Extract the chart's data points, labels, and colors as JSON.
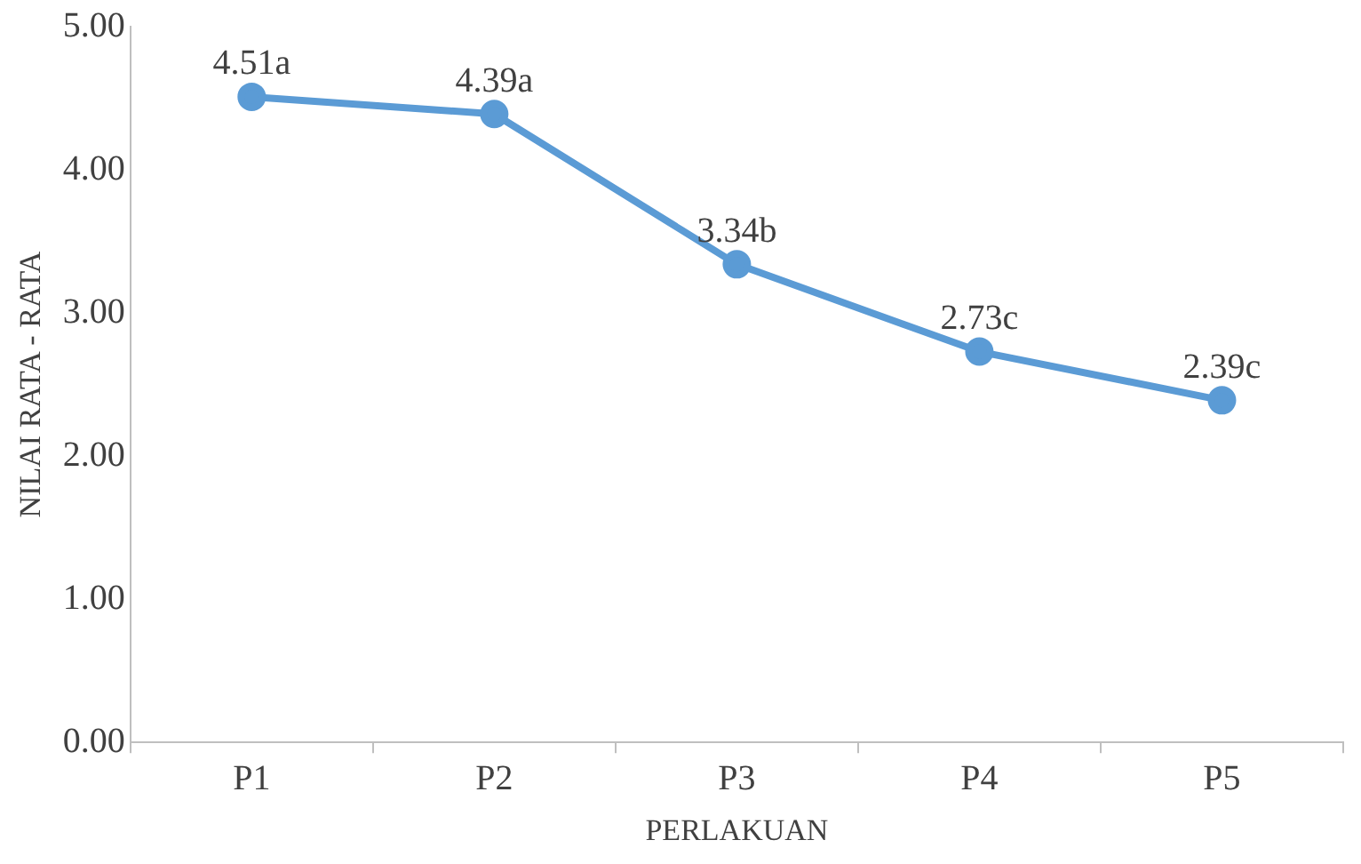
{
  "chart_data": {
    "type": "line",
    "xlabel": "PERLAKUAN",
    "ylabel": "NILAI RATA - RATA",
    "categories": [
      "P1",
      "P2",
      "P3",
      "P4",
      "P5"
    ],
    "series": [
      {
        "color": "#5b9bd5",
        "values": [
          4.51,
          4.39,
          3.34,
          2.73,
          2.39
        ],
        "value_labels": [
          "4.51a",
          "4.39a",
          "3.34b",
          "2.73c",
          "2.39c"
        ]
      }
    ],
    "ylim": [
      0,
      5
    ],
    "yticks": [
      {
        "value": 0,
        "label": "0.00"
      },
      {
        "value": 1,
        "label": "1.00"
      },
      {
        "value": 2,
        "label": "2.00"
      },
      {
        "value": 3,
        "label": "3.00"
      },
      {
        "value": 4,
        "label": "4.00"
      },
      {
        "value": 5,
        "label": "5.00"
      }
    ],
    "grid": false,
    "legend": false,
    "marker": "circle",
    "line_style": "solid"
  }
}
